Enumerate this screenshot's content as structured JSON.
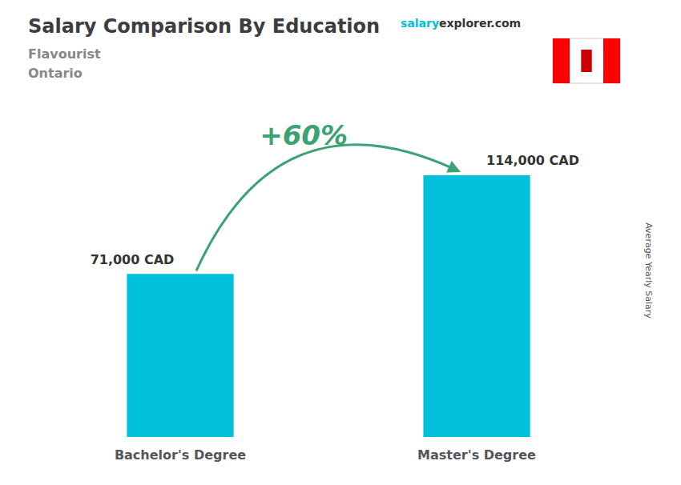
{
  "chart_data": {
    "type": "bar",
    "title": "Salary Comparison By Education",
    "subtitle": [
      "Flavourist",
      "Ontario"
    ],
    "branding": [
      "salary",
      "explorer.com"
    ],
    "ylabel": "Average Yearly Salary",
    "categories": [
      "Bachelor's Degree",
      "Master's Degree"
    ],
    "values": [
      71000,
      114000
    ],
    "value_labels": [
      "71,000 CAD",
      "114,000 CAD"
    ],
    "data_labels": true,
    "annotations": [
      "+60%"
    ],
    "color": "#00c0dc",
    "ylim": [
      0,
      145000
    ],
    "tick_labels": "x",
    "grid": false
  }
}
